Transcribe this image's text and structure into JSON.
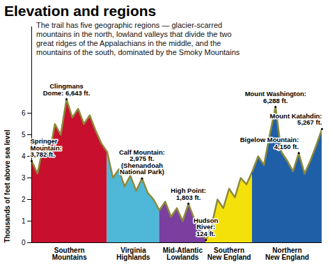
{
  "chart_data": {
    "type": "area",
    "title": "Elevation and regions",
    "subtitle": "The trail has five geographic regions — glacier-scarred mountains in the north, lowland valleys that divide the two great ridges of the Appalachians in the middle, and the mountains of the south, dominated by the Smoky Mountains",
    "y_label": "Thousands of feet above sea level",
    "xlim": [
      0,
      100
    ],
    "ylim": [
      0,
      10
    ],
    "yticks": [
      0,
      1,
      2,
      3,
      4,
      5,
      6
    ],
    "tick_labels": "y",
    "series": [
      {
        "name": "Southern Mountains",
        "color": "#c8102e",
        "x": [
          0,
          2,
          4,
          6,
          8,
          10,
          12,
          14,
          16,
          18,
          20,
          22,
          24,
          26
        ],
        "values": [
          3.782,
          3.2,
          4.5,
          4.0,
          5.5,
          5.0,
          6.643,
          5.8,
          6.2,
          5.5,
          5.9,
          5.2,
          4.6,
          4.2
        ]
      },
      {
        "name": "Virginia Highlands",
        "color": "#4fb8d8",
        "x": [
          26,
          28,
          30,
          32,
          34,
          36,
          38,
          40,
          42,
          44
        ],
        "values": [
          4.2,
          3.0,
          3.4,
          2.6,
          3.1,
          2.4,
          2.975,
          2.3,
          2.0,
          1.5
        ]
      },
      {
        "name": "Mid-Atlantic Lowlands",
        "color": "#7b3fa0",
        "x": [
          44,
          46,
          48,
          50,
          52,
          54,
          56,
          58,
          60
        ],
        "values": [
          1.5,
          1.9,
          1.2,
          1.6,
          1.0,
          1.803,
          1.1,
          0.7,
          0.124
        ]
      },
      {
        "name": "Southern New England",
        "color": "#f5e10a",
        "x": [
          60,
          62,
          64,
          66,
          68,
          70,
          72,
          74,
          76
        ],
        "values": [
          0.124,
          0.8,
          2.0,
          1.6,
          2.5,
          2.1,
          3.0,
          2.7,
          3.3
        ]
      },
      {
        "name": "Northern New England",
        "color": "#1f5fa8",
        "x": [
          76,
          78,
          80,
          82,
          84,
          86,
          88,
          90,
          92,
          94,
          96,
          98,
          100
        ],
        "values": [
          3.3,
          4.0,
          3.6,
          5.0,
          6.288,
          4.2,
          3.8,
          3.3,
          4.15,
          3.2,
          3.8,
          4.5,
          5.267
        ]
      }
    ],
    "annotations": [
      {
        "text": "Springer\nMountain:\n3,782 ft.",
        "x": 0,
        "value": 3.782
      },
      {
        "text": "Clingmans\nDome: 6,643 ft.",
        "x": 12,
        "value": 6.643
      },
      {
        "text": "Calf Mountain:\n2,975 ft.\n(Shenandoah\nNational Park)",
        "x": 38,
        "value": 2.975
      },
      {
        "text": "High Point:\n1,803 ft.",
        "x": 54,
        "value": 1.803
      },
      {
        "text": "Hudson\nRiver:\n124 ft.",
        "x": 60,
        "value": 0.124
      },
      {
        "text": "Mount Washington:\n6,288 ft.",
        "x": 84,
        "value": 6.288
      },
      {
        "text": "Bigelow Mountain:\n4,150 ft.",
        "x": 92,
        "value": 4.15
      },
      {
        "text": "Mount Katahdin:\n5,267 ft.",
        "x": 100,
        "value": 5.267
      }
    ]
  }
}
